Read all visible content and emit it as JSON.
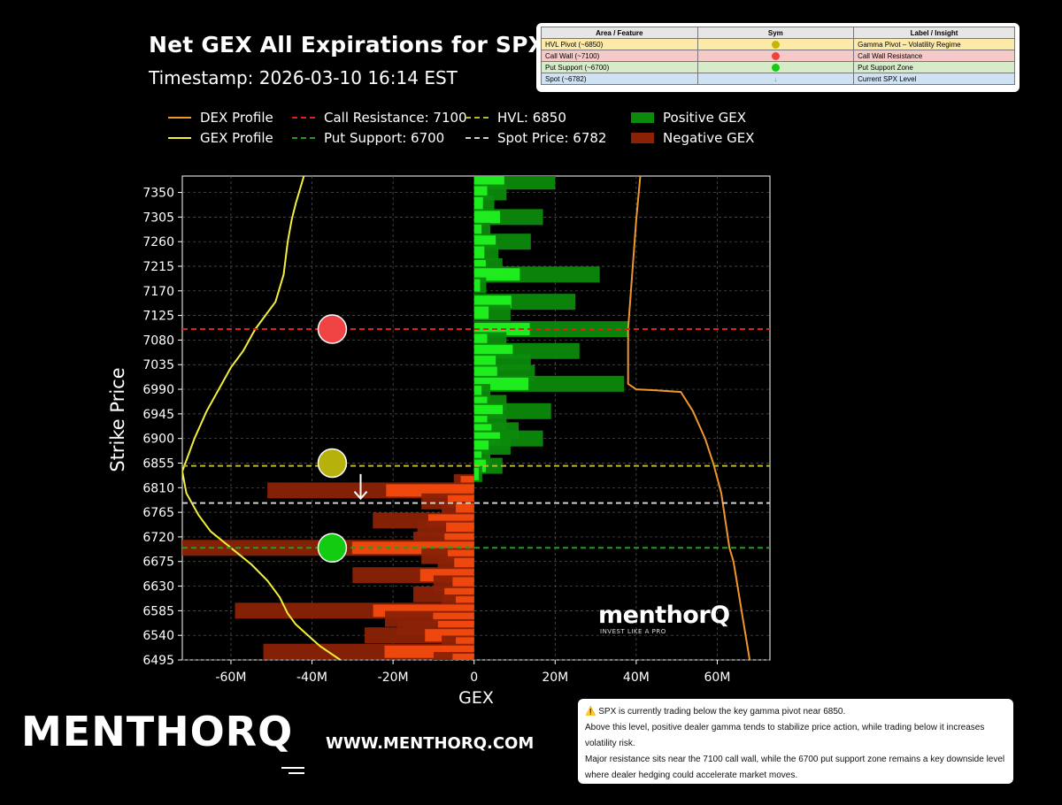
{
  "header": {
    "title": "Net GEX All Expirations for SPX",
    "timestamp": "Timestamp: 2026-03-10 16:14 EST"
  },
  "legend_table": {
    "headers": [
      "Area / Feature",
      "Sym",
      "Label / Insight"
    ],
    "rows": [
      {
        "feature": "HVL Pivot (~6850)",
        "insight": "Gamma Pivot – Volatility Regime",
        "row_color": "#fde9a8",
        "sym_color": "#c3b800",
        "sym": "dot"
      },
      {
        "feature": "Call Wall (~7100)",
        "insight": "Call Wall Resistance",
        "row_color": "#f6c9c9",
        "sym_color": "#f04040",
        "sym": "dot"
      },
      {
        "feature": "Put Support (~6700)",
        "insight": "Put Support Zone",
        "row_color": "#d6ecc9",
        "sym_color": "#11cc11",
        "sym": "dot"
      },
      {
        "feature": "Spot (~6782)",
        "insight": "Current SPX Level",
        "row_color": "#cfe2f3",
        "sym_color": "#ffffff",
        "sym": "arrow",
        "sym_text": "↓"
      }
    ]
  },
  "legend": {
    "dex_profile": "DEX Profile",
    "gex_profile": "GEX Profile",
    "call_resistance": "Call Resistance: 7100",
    "put_support": "Put Support: 6700",
    "hvl": "HVL: 6850",
    "spot": "Spot Price: 6782",
    "positive_gex": "Positive GEX",
    "negative_gex": "Negative GEX"
  },
  "colors": {
    "dex": "#f0962c",
    "gex": "#f2f03a",
    "call_line": "#e0201e",
    "put_line": "#20a020",
    "hvl_line": "#b7b730",
    "spot_line": "#cfcfcf",
    "pos_dark": "#0c8a0c",
    "pos_bright": "#22ff22",
    "neg_dark": "#8b2206",
    "neg_bright": "#ff4f10",
    "call_marker": "#f04444",
    "hvl_marker": "#b7b10c",
    "put_marker": "#11cc11"
  },
  "watermark": {
    "text": "menthor",
    "q": "Q",
    "tagline": "INVEST LIKE A PRO"
  },
  "branding": {
    "brand": "MENTHOR",
    "q": "Q",
    "website": "WWW.MENTHORQ.COM"
  },
  "note": {
    "icon": "⚠️",
    "line1": "SPX is currently trading below the key gamma pivot near 6850.",
    "line2": "Above this level, positive dealer gamma tends to stabilize price action, while trading below it increases volatility risk.",
    "line3": "Major resistance sits near the 7100 call wall, while the 6700 put support zone remains a key downside level where dealer hedging could accelerate market moves."
  },
  "chart_data": {
    "type": "bar",
    "orientation": "horizontal",
    "xlabel": "GEX",
    "ylabel": "Strike Price",
    "xlim": [
      -72,
      73
    ],
    "ylim": [
      6495,
      7380
    ],
    "x_unit": "M",
    "x_ticks": [
      -60,
      -40,
      -20,
      0,
      20,
      40,
      60
    ],
    "x_tick_labels": [
      "-60M",
      "-40M",
      "-20M",
      "0",
      "20M",
      "40M",
      "60M"
    ],
    "y_ticks": [
      6495,
      6540,
      6585,
      6630,
      6675,
      6720,
      6765,
      6810,
      6855,
      6900,
      6945,
      6990,
      7035,
      7080,
      7125,
      7170,
      7215,
      7260,
      7305,
      7350
    ],
    "grid": true,
    "levels": {
      "call_resistance": 7100,
      "put_support": 6700,
      "hvl": 6850,
      "spot": 6782
    },
    "markers": [
      {
        "name": "call-wall-marker",
        "x": -35,
        "y": 7100,
        "color_key": "call_marker"
      },
      {
        "name": "hvl-marker",
        "x": -35,
        "y": 6855,
        "color_key": "hvl_marker"
      },
      {
        "name": "put-support-marker",
        "x": -35,
        "y": 6700,
        "color_key": "put_marker"
      }
    ],
    "spot_arrow": {
      "x": -28,
      "y_from": 6835,
      "y_to": 6790
    },
    "bar_height": 18,
    "positive_bars": [
      [
        7370,
        20
      ],
      [
        7350,
        8
      ],
      [
        7330,
        5
      ],
      [
        7305,
        17
      ],
      [
        7280,
        4
      ],
      [
        7260,
        14
      ],
      [
        7240,
        6
      ],
      [
        7215,
        7
      ],
      [
        7200,
        31
      ],
      [
        7180,
        3
      ],
      [
        7150,
        25
      ],
      [
        7130,
        9
      ],
      [
        7100,
        38
      ],
      [
        7080,
        8
      ],
      [
        7060,
        26
      ],
      [
        7040,
        14
      ],
      [
        7020,
        15
      ],
      [
        7000,
        37
      ],
      [
        6985,
        4
      ],
      [
        6965,
        8
      ],
      [
        6950,
        19
      ],
      [
        6930,
        8
      ],
      [
        6915,
        11
      ],
      [
        6900,
        17
      ],
      [
        6885,
        9
      ],
      [
        6865,
        4
      ],
      [
        6850,
        7
      ],
      [
        6835,
        2
      ]
    ],
    "negative_bars": [
      [
        6820,
        5
      ],
      [
        6805,
        51
      ],
      [
        6785,
        13
      ],
      [
        6770,
        8
      ],
      [
        6750,
        25
      ],
      [
        6735,
        14
      ],
      [
        6715,
        15
      ],
      [
        6700,
        72
      ],
      [
        6685,
        13
      ],
      [
        6670,
        9
      ],
      [
        6650,
        30
      ],
      [
        6635,
        10
      ],
      [
        6615,
        15
      ],
      [
        6600,
        8
      ],
      [
        6585,
        59
      ],
      [
        6570,
        22
      ],
      [
        6555,
        19
      ],
      [
        6540,
        27
      ],
      [
        6525,
        8
      ],
      [
        6510,
        52
      ],
      [
        6495,
        10
      ]
    ],
    "gex_profile": [
      [
        -42,
        7380
      ],
      [
        -44,
        7330
      ],
      [
        -45,
        7300
      ],
      [
        -46,
        7260
      ],
      [
        -47,
        7200
      ],
      [
        -49,
        7150
      ],
      [
        -54,
        7100
      ],
      [
        -57,
        7060
      ],
      [
        -60,
        7030
      ],
      [
        -63,
        6990
      ],
      [
        -66,
        6950
      ],
      [
        -69,
        6900
      ],
      [
        -71,
        6860
      ],
      [
        -72,
        6840
      ],
      [
        -71,
        6800
      ],
      [
        -68,
        6760
      ],
      [
        -65,
        6730
      ],
      [
        -60,
        6700
      ],
      [
        -55,
        6670
      ],
      [
        -51,
        6640
      ],
      [
        -48,
        6610
      ],
      [
        -46,
        6580
      ],
      [
        -44,
        6560
      ],
      [
        -41,
        6540
      ],
      [
        -38,
        6520
      ],
      [
        -33,
        6495
      ]
    ],
    "dex_profile": [
      [
        41,
        7380
      ],
      [
        40,
        7300
      ],
      [
        39,
        7200
      ],
      [
        38,
        7100
      ],
      [
        38,
        7035
      ],
      [
        38,
        7000
      ],
      [
        40,
        6990
      ],
      [
        45,
        6988
      ],
      [
        51,
        6985
      ],
      [
        54,
        6950
      ],
      [
        57,
        6900
      ],
      [
        59,
        6855
      ],
      [
        61,
        6800
      ],
      [
        62,
        6750
      ],
      [
        63,
        6700
      ],
      [
        64,
        6675
      ],
      [
        65,
        6630
      ],
      [
        66,
        6585
      ],
      [
        67,
        6540
      ],
      [
        68,
        6495
      ]
    ]
  }
}
